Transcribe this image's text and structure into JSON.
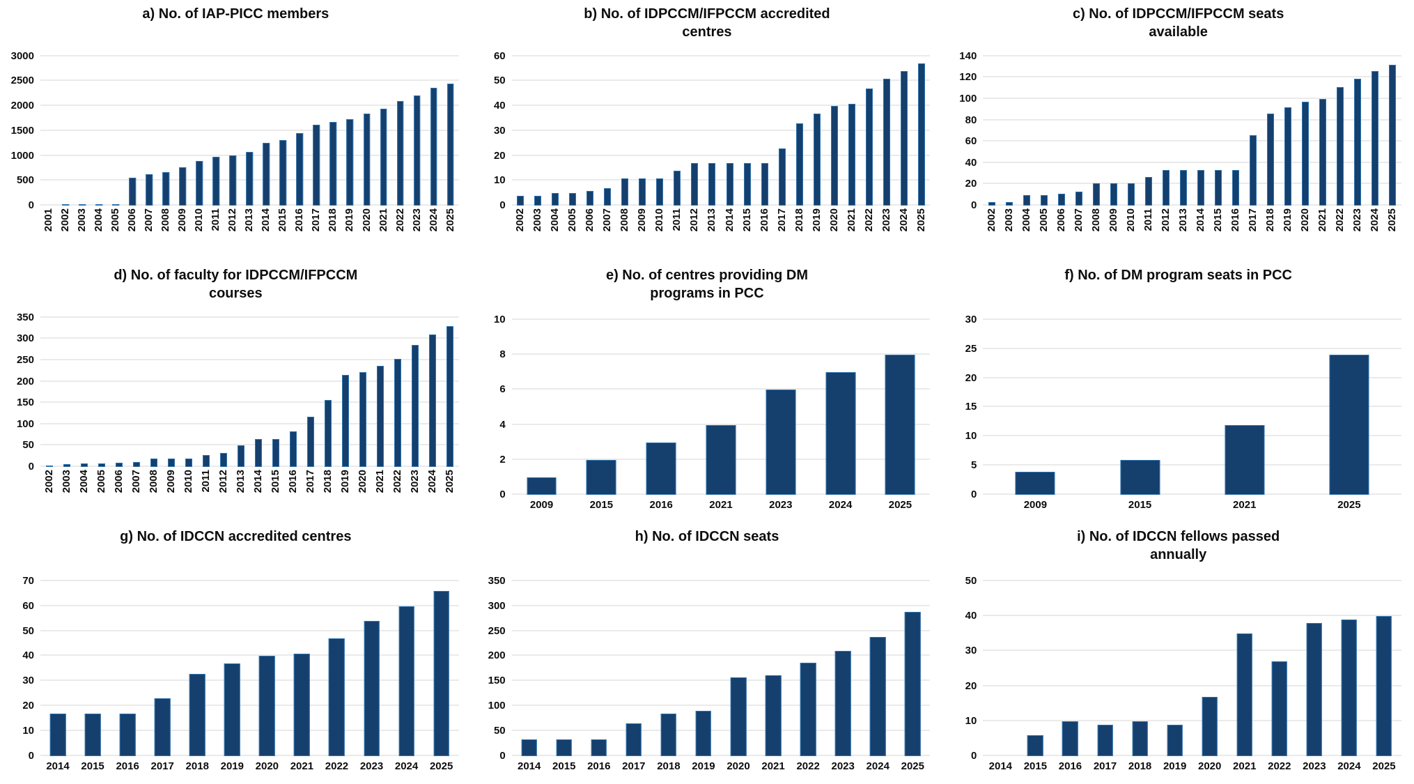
{
  "figure": {
    "background": "#ffffff",
    "text_color": "#0d0d0d",
    "bar_fill": "#153f6d",
    "bar_edge": "#2e74b0",
    "gridline_color": "#eaeaea"
  },
  "chart_data": [
    {
      "id": "a",
      "type": "bar",
      "title": "a) No. of IAP-PICC members",
      "categories": [
        "2001",
        "2002",
        "2003",
        "2004",
        "2005",
        "2006",
        "2007",
        "2008",
        "2009",
        "2010",
        "2011",
        "2012",
        "2013",
        "2014",
        "2015",
        "2016",
        "2017",
        "2018",
        "2019",
        "2020",
        "2021",
        "2022",
        "2023",
        "2024",
        "2025"
      ],
      "values": [
        0,
        25,
        25,
        25,
        25,
        560,
        630,
        665,
        770,
        900,
        980,
        1010,
        1080,
        1265,
        1310,
        1460,
        1625,
        1680,
        1740,
        1850,
        1950,
        2100,
        2205,
        2360,
        2450
      ],
      "xlabel": "",
      "ylabel": "",
      "ylim": [
        0,
        3000
      ],
      "ytick_step": 500,
      "grid": true,
      "legend": "none",
      "x_labels_rotated": true,
      "bar_ratio": 0.4,
      "title_max_width": 600
    },
    {
      "id": "b",
      "type": "bar",
      "title": "b) No. of IDPCCM/IFPCCM accredited centres",
      "categories": [
        "2002",
        "2003",
        "2004",
        "2005",
        "2006",
        "2007",
        "2008",
        "2009",
        "2010",
        "2011",
        "2012",
        "2013",
        "2014",
        "2015",
        "2016",
        "2017",
        "2018",
        "2019",
        "2020",
        "2021",
        "2022",
        "2023",
        "2024",
        "2025"
      ],
      "values": [
        4,
        4,
        5,
        5,
        6,
        7,
        11,
        11,
        11,
        14,
        17,
        17,
        17,
        17,
        17,
        23,
        33,
        37,
        40,
        41,
        47,
        51,
        54,
        57
      ],
      "xlabel": "",
      "ylabel": "",
      "ylim": [
        0,
        60
      ],
      "ytick_step": 10,
      "grid": true,
      "legend": "none",
      "x_labels_rotated": true,
      "bar_ratio": 0.4,
      "title_max_width": 430
    },
    {
      "id": "c",
      "type": "bar",
      "title": "c) No. of IDPCCM/IFPCCM seats available",
      "categories": [
        "2002",
        "2003",
        "2004",
        "2005",
        "2006",
        "2007",
        "2008",
        "2009",
        "2010",
        "2011",
        "2012",
        "2013",
        "2014",
        "2015",
        "2016",
        "2017",
        "2018",
        "2019",
        "2020",
        "2021",
        "2022",
        "2023",
        "2024",
        "2025"
      ],
      "values": [
        3,
        3,
        10,
        10,
        11,
        13,
        21,
        21,
        21,
        27,
        33,
        33,
        33,
        33,
        33,
        66,
        86,
        92,
        97,
        100,
        111,
        119,
        126,
        132
      ],
      "xlabel": "",
      "ylabel": "",
      "ylim": [
        0,
        140
      ],
      "ytick_step": 20,
      "grid": true,
      "legend": "none",
      "x_labels_rotated": true,
      "bar_ratio": 0.4,
      "title_max_width": 360
    },
    {
      "id": "d",
      "type": "bar",
      "title": "d) No. of faculty for IDPCCM/IFPCCM courses",
      "categories": [
        "2002",
        "2003",
        "2004",
        "2005",
        "2006",
        "2007",
        "2008",
        "2009",
        "2010",
        "2011",
        "2012",
        "2013",
        "2014",
        "2015",
        "2016",
        "2017",
        "2018",
        "2019",
        "2020",
        "2021",
        "2022",
        "2023",
        "2024",
        "2025"
      ],
      "values": [
        2,
        6,
        9,
        9,
        10,
        12,
        20,
        20,
        19,
        27,
        32,
        51,
        66,
        66,
        83,
        117,
        156,
        215,
        222,
        237,
        253,
        285,
        310,
        330
      ],
      "xlabel": "",
      "ylabel": "",
      "ylim": [
        0,
        350
      ],
      "ytick_step": 50,
      "grid": true,
      "legend": "none",
      "x_labels_rotated": true,
      "bar_ratio": 0.4,
      "title_max_width": 430
    },
    {
      "id": "e",
      "type": "bar",
      "title": "e) No. of centres providing DM programs in PCC",
      "categories": [
        "2009",
        "2015",
        "2016",
        "2021",
        "2023",
        "2024",
        "2025"
      ],
      "values": [
        1,
        2,
        3,
        4,
        6,
        7,
        8
      ],
      "xlabel": "",
      "ylabel": "",
      "ylim": [
        0,
        10
      ],
      "ytick_step": 2,
      "grid": true,
      "legend": "none",
      "x_labels_rotated": false,
      "bar_ratio": 0.5,
      "title_max_width": 350
    },
    {
      "id": "f",
      "type": "bar",
      "title": "f) No. of DM program seats in PCC",
      "categories": [
        "2009",
        "2015",
        "2021",
        "2025"
      ],
      "values": [
        4,
        6,
        12,
        24
      ],
      "xlabel": "",
      "ylabel": "",
      "ylim": [
        0,
        30
      ],
      "ytick_step": 5,
      "grid": true,
      "legend": "none",
      "x_labels_rotated": false,
      "bar_ratio": 0.38,
      "title_max_width": 600
    },
    {
      "id": "g",
      "type": "bar",
      "title": "g) No. of IDCCN accredited centres",
      "categories": [
        "2014",
        "2015",
        "2016",
        "2017",
        "2018",
        "2019",
        "2020",
        "2021",
        "2022",
        "2023",
        "2024",
        "2025"
      ],
      "values": [
        17,
        17,
        17,
        23,
        33,
        37,
        40,
        41,
        47,
        54,
        60,
        66
      ],
      "xlabel": "",
      "ylabel": "",
      "ylim": [
        0,
        70
      ],
      "ytick_step": 10,
      "grid": true,
      "legend": "none",
      "x_labels_rotated": false,
      "bar_ratio": 0.45,
      "title_max_width": 600
    },
    {
      "id": "h",
      "type": "bar",
      "title": "h) No. of IDCCN seats",
      "categories": [
        "2014",
        "2015",
        "2016",
        "2017",
        "2018",
        "2019",
        "2020",
        "2021",
        "2022",
        "2023",
        "2024",
        "2025"
      ],
      "values": [
        33,
        33,
        33,
        65,
        85,
        91,
        158,
        161,
        187,
        211,
        238,
        288
      ],
      "xlabel": "",
      "ylabel": "",
      "ylim": [
        0,
        350
      ],
      "ytick_step": 50,
      "grid": true,
      "legend": "none",
      "x_labels_rotated": false,
      "bar_ratio": 0.45,
      "title_max_width": 600
    },
    {
      "id": "i",
      "type": "bar",
      "title": "i) No. of IDCCN fellows passed annually",
      "categories": [
        "2014",
        "2015",
        "2016",
        "2017",
        "2018",
        "2019",
        "2020",
        "2021",
        "2022",
        "2023",
        "2024",
        "2025"
      ],
      "values": [
        0,
        6,
        10,
        9,
        10,
        9,
        17,
        35,
        27,
        38,
        39,
        40
      ],
      "xlabel": "",
      "ylabel": "",
      "ylim": [
        0,
        50
      ],
      "ytick_step": 10,
      "grid": true,
      "legend": "none",
      "x_labels_rotated": false,
      "bar_ratio": 0.45,
      "title_max_width": 350
    }
  ]
}
